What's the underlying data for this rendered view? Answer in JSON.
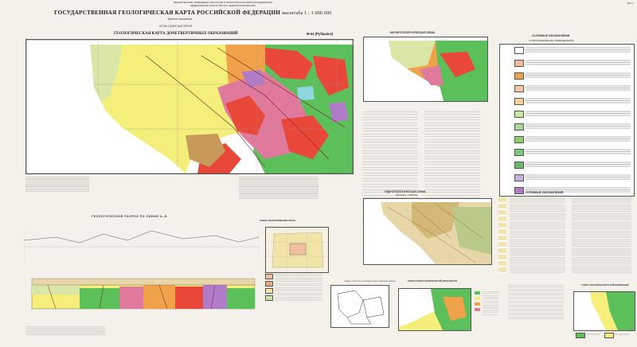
{
  "header": {
    "org": "МИНИСТЕРСТВО ПРИРОДНЫХ РЕСУРСОВ И ЭКОЛОГИИ РОССИЙСКОЙ ФЕДЕРАЦИИ\nФЕДЕРАЛЬНОЕ АГЕНТСТВО ПО НЕДРОПОЛЬЗОВАНИЮ",
    "title": "ГОСУДАРСТВЕННАЯ ГЕОЛОГИЧЕСКАЯ КАРТА РОССИЙСКОЙ ФЕДЕРАЦИИ",
    "scale": "масштаба 1 : 1 000 000",
    "edition": "Третье поколение",
    "series": "АЛТАЕ-САЯНСКАЯ СЕРИЯ",
    "sheet_corner": "Лист 1"
  },
  "main_map": {
    "title": "ГЕОЛОГИЧЕСКАЯ КАРТА ДОЧЕТВЕРТИЧНЫХ ОБРАЗОВАНИЙ",
    "sheet": "M-44 (Рубцовск)"
  },
  "section": {
    "title": "ГЕОЛОГИЧЕСКИЙ РАЗРЕЗ ПО ЛИНИИ А–Б"
  },
  "tectonic": {
    "title": "МАГНИТОГЕОЛОГИЧЕСКАЯ СХЕМА",
    "scale": "Масштаб 1 : 2 500 000"
  },
  "legend_right": {
    "title": "УСЛОВНЫЕ ОБОЗНАЧЕНИЯ",
    "subtitle": "СТРАТИГРАФИЧЕСКИЕ ПОДРАЗДЕЛЕНИЯ"
  },
  "hydro": {
    "title": "ГИДРОГЕОЛОГИЧЕСКАЯ СХЕМА",
    "scale": "Масштаб 1 : 2 500 000"
  },
  "hydro_legend": {
    "title": "УСЛОВНЫЕ ОБОЗНАЧЕНИЯ"
  },
  "mini_scheme_1": {
    "title": "СХЕМА РАСПОЛОЖЕНИЯ ЛИСТА",
    "scale": "Масштаб 1 : 15 000 000"
  },
  "mini_scheme_2": {
    "title": "СХЕМА СТРУКТУРНО-ФОРМАЦИОННОГО РАЙОНИРОВАНИЯ"
  },
  "mini_scheme_3": {
    "title": "СХЕМА ГЕОЛОГО-ГЕОФИЗИЧЕСКОЙ ИЗУЧЕННОСТИ"
  },
  "mini_scheme_4": {
    "title": "СХЕМА ТЕКТОНИЧЕСКОГО РАЙОНИРОВАНИЯ"
  },
  "colors": {
    "yellow": "#f3ef7a",
    "red": "#e8473a",
    "pink": "#e07a9c",
    "green": "#5cc05a",
    "orange": "#f0a24a",
    "violet": "#b27bc8",
    "brown": "#c89a5a",
    "cyan": "#8ed6e0"
  }
}
